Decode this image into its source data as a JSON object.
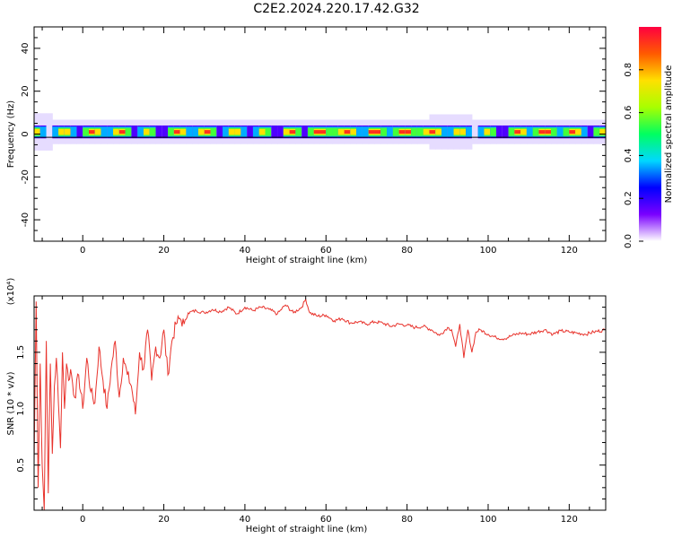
{
  "title": "C2E2.2024.220.17.42.G32",
  "colors": {
    "snr_line": "#e8332c",
    "zero_line": "#000000",
    "colormap": [
      "#ffffff",
      "#7a00ff",
      "#0000ff",
      "#00d8ff",
      "#00ff60",
      "#a8ff00",
      "#ffe000",
      "#ff5a00",
      "#ff0040"
    ]
  },
  "chart_data": [
    {
      "type": "heatmap",
      "xlabel": "Height of straight line (km)",
      "ylabel": "Frequency (Hz)",
      "xlim": [
        -12,
        129
      ],
      "ylim": [
        -50,
        50
      ],
      "xticks": [
        0,
        20,
        40,
        60,
        80,
        100,
        120
      ],
      "yticks": [
        -40,
        -20,
        0,
        20,
        40
      ],
      "colorbar": {
        "label": "Normalized spectral amplitude",
        "range": [
          0,
          1
        ],
        "ticks": [
          "0.0",
          "0.2",
          "0.4",
          "0.6",
          "0.8"
        ]
      },
      "band_center_hz": 1,
      "band_halfwidth_hz": 3
    },
    {
      "type": "line",
      "xlabel": "Height of straight line (km)",
      "ylabel": "SNR (10 * v/v)",
      "scale_label": "(x10⁴)",
      "xlim": [
        -12,
        129
      ],
      "ylim": [
        0.1,
        2.0
      ],
      "xticks": [
        0,
        20,
        40,
        60,
        80,
        100,
        120
      ],
      "yticks": [
        "0.5",
        "1.0",
        "1.5"
      ],
      "series": [
        {
          "x": [
            -12,
            -11.5,
            -11,
            -10.5,
            -10,
            -9.5,
            -9,
            -8.5,
            -8,
            -7.5,
            -7,
            -6.5,
            -6,
            -5.5,
            -5,
            -4.5,
            -4,
            -3.5,
            -3,
            -2,
            -1,
            0,
            1,
            2,
            3,
            4,
            5,
            6,
            7,
            8,
            9,
            10,
            11,
            12,
            13,
            14,
            15,
            16,
            17,
            18,
            19,
            20,
            21,
            22,
            23,
            24,
            25,
            26,
            28,
            30,
            32,
            34,
            36,
            38,
            40,
            42,
            44,
            46,
            48,
            50,
            52,
            54,
            55,
            56,
            58,
            60,
            62,
            64,
            66,
            68,
            70,
            72,
            74,
            76,
            78,
            80,
            82,
            84,
            86,
            88,
            90,
            91,
            92,
            93,
            94,
            95,
            96,
            97,
            98,
            100,
            102,
            104,
            106,
            108,
            110,
            112,
            114,
            116,
            118,
            120,
            122,
            124,
            126,
            129
          ],
          "y": [
            0.5,
            1.95,
            0.3,
            1.4,
            0.5,
            0.1,
            1.6,
            0.25,
            1.4,
            0.6,
            1.2,
            1.45,
            1.05,
            0.65,
            1.5,
            1.0,
            1.4,
            1.25,
            1.35,
            1.1,
            1.3,
            1.0,
            1.45,
            1.15,
            1.05,
            1.55,
            1.25,
            1.0,
            1.35,
            1.6,
            1.1,
            1.45,
            1.3,
            1.2,
            0.95,
            1.5,
            1.35,
            1.7,
            1.25,
            1.55,
            1.45,
            1.7,
            1.3,
            1.6,
            1.75,
            1.8,
            1.75,
            1.85,
            1.87,
            1.85,
            1.88,
            1.86,
            1.9,
            1.84,
            1.9,
            1.87,
            1.9,
            1.88,
            1.84,
            1.92,
            1.85,
            1.9,
            1.97,
            1.85,
            1.82,
            1.83,
            1.78,
            1.8,
            1.76,
            1.77,
            1.75,
            1.77,
            1.76,
            1.73,
            1.75,
            1.74,
            1.72,
            1.73,
            1.7,
            1.65,
            1.72,
            1.7,
            1.55,
            1.75,
            1.45,
            1.7,
            1.5,
            1.68,
            1.7,
            1.66,
            1.63,
            1.62,
            1.65,
            1.67,
            1.66,
            1.68,
            1.7,
            1.66,
            1.69,
            1.68,
            1.67,
            1.66,
            1.68,
            1.7
          ]
        }
      ]
    }
  ]
}
